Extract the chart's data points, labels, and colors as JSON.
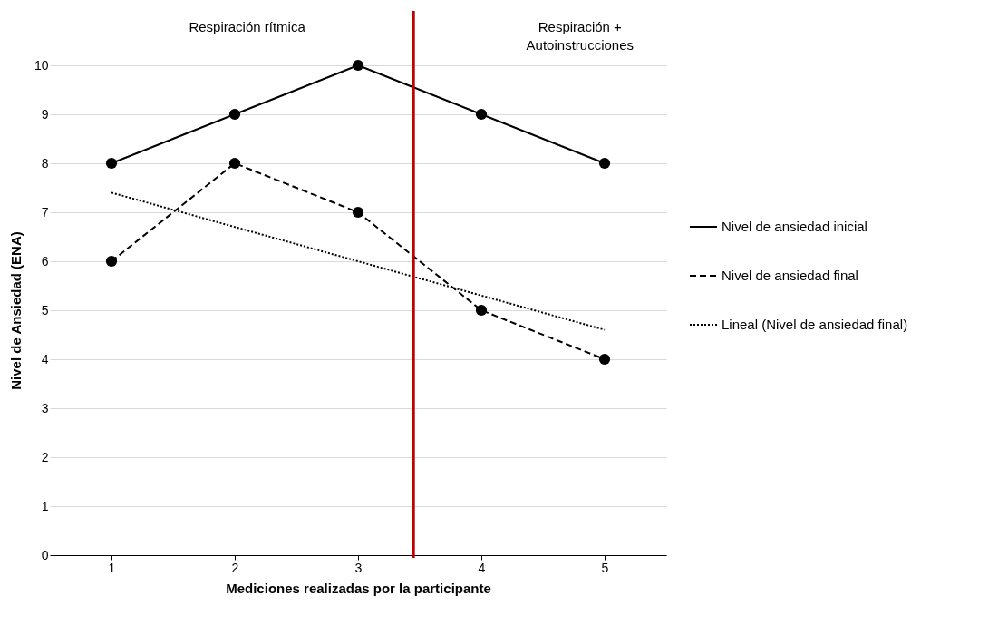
{
  "chart_data": {
    "type": "line",
    "xlabel": "Mediciones realizadas por la participante",
    "ylabel": "Nivel de Ansiedad (ENA)",
    "x": [
      1,
      2,
      3,
      4,
      5
    ],
    "xlim": [
      0.5,
      5.5
    ],
    "xticks": [
      1,
      2,
      3,
      4,
      5
    ],
    "ylim": [
      0,
      10
    ],
    "yticks": [
      0,
      1,
      2,
      3,
      4,
      5,
      6,
      7,
      8,
      9,
      10
    ],
    "grid": "y",
    "legend": "right",
    "series": [
      {
        "name": "Nivel de ansiedad inicial",
        "color": "#000000",
        "values": [
          8,
          9,
          10,
          9,
          8
        ],
        "marker": "circle",
        "line_style": "solid"
      },
      {
        "name": "Nivel de ansiedad final",
        "color": "#000000",
        "values": [
          6,
          8,
          7,
          5,
          4
        ],
        "marker": "circle",
        "line_style": "dashed"
      },
      {
        "name": "Lineal (Nivel de ansiedad final)",
        "color": "#000000",
        "x": [
          1,
          5
        ],
        "values": [
          7.4,
          4.6
        ],
        "marker": "none",
        "line_style": "dotted"
      }
    ],
    "ref_lines": [
      {
        "axis": "x",
        "value": 3.45,
        "color": "#c00000"
      }
    ],
    "annotations": [
      "Respiración rítmica",
      "Respiración +\nAutoinstrucciones"
    ]
  }
}
